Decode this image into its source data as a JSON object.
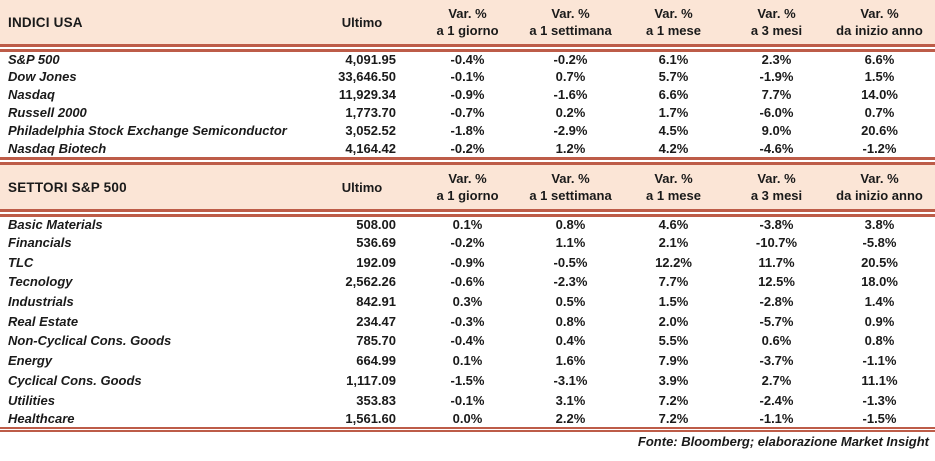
{
  "colors": {
    "header_bg": "#fbe5d6",
    "rule_red": "#bd5c48",
    "text": "#1a1a1a"
  },
  "header_labels": {
    "ultimo": "Ultimo",
    "var": "Var. %",
    "periods": [
      "a 1 giorno",
      "a 1 settimana",
      "a 1 mese",
      "a 3 mesi",
      "da inizio anno"
    ]
  },
  "tables": [
    {
      "title": "INDICI USA",
      "rows": [
        {
          "name": "S&P 500",
          "ultimo": "4,091.95",
          "vars": [
            "-0.4%",
            "-0.2%",
            "6.1%",
            "2.3%",
            "6.6%"
          ]
        },
        {
          "name": "Dow Jones",
          "ultimo": "33,646.50",
          "vars": [
            "-0.1%",
            "0.7%",
            "5.7%",
            "-1.9%",
            "1.5%"
          ]
        },
        {
          "name": "Nasdaq",
          "ultimo": "11,929.34",
          "vars": [
            "-0.9%",
            "-1.6%",
            "6.6%",
            "7.7%",
            "14.0%"
          ]
        },
        {
          "name": "Russell 2000",
          "ultimo": "1,773.70",
          "vars": [
            "-0.7%",
            "0.2%",
            "1.7%",
            "-6.0%",
            "0.7%"
          ]
        },
        {
          "name": "Philadelphia Stock Exchange Semiconductor",
          "ultimo": "3,052.52",
          "vars": [
            "-1.8%",
            "-2.9%",
            "4.5%",
            "9.0%",
            "20.6%"
          ]
        },
        {
          "name": "Nasdaq Biotech",
          "ultimo": "4,164.42",
          "vars": [
            "-0.2%",
            "1.2%",
            "4.2%",
            "-4.6%",
            "-1.2%"
          ]
        }
      ]
    },
    {
      "title": "SETTORI S&P 500",
      "rows": [
        {
          "name": "Basic Materials",
          "ultimo": "508.00",
          "vars": [
            "0.1%",
            "0.8%",
            "4.6%",
            "-3.8%",
            "3.8%"
          ]
        },
        {
          "name": "Financials",
          "ultimo": "536.69",
          "vars": [
            "-0.2%",
            "1.1%",
            "2.1%",
            "-10.7%",
            "-5.8%"
          ]
        },
        {
          "name": "TLC",
          "ultimo": "192.09",
          "vars": [
            "-0.9%",
            "-0.5%",
            "12.2%",
            "11.7%",
            "20.5%"
          ]
        },
        {
          "name": "Tecnology",
          "ultimo": "2,562.26",
          "vars": [
            "-0.6%",
            "-2.3%",
            "7.7%",
            "12.5%",
            "18.0%"
          ]
        },
        {
          "name": "Industrials",
          "ultimo": "842.91",
          "vars": [
            "0.3%",
            "0.5%",
            "1.5%",
            "-2.8%",
            "1.4%"
          ]
        },
        {
          "name": "Real Estate",
          "ultimo": "234.47",
          "vars": [
            "-0.3%",
            "0.8%",
            "2.0%",
            "-5.7%",
            "0.9%"
          ]
        },
        {
          "name": "Non-Cyclical Cons. Goods",
          "ultimo": "785.70",
          "vars": [
            "-0.4%",
            "0.4%",
            "5.5%",
            "0.6%",
            "0.8%"
          ]
        },
        {
          "name": "Energy",
          "ultimo": "664.99",
          "vars": [
            "0.1%",
            "1.6%",
            "7.9%",
            "-3.7%",
            "-1.1%"
          ]
        },
        {
          "name": "Cyclical Cons. Goods",
          "ultimo": "1,117.09",
          "vars": [
            "-1.5%",
            "-3.1%",
            "3.9%",
            "2.7%",
            "11.1%"
          ]
        },
        {
          "name": "Utilities",
          "ultimo": "353.83",
          "vars": [
            "-0.1%",
            "3.1%",
            "7.2%",
            "-2.4%",
            "-1.3%"
          ]
        },
        {
          "name": "Healthcare",
          "ultimo": "1,561.60",
          "vars": [
            "0.0%",
            "2.2%",
            "7.2%",
            "-1.1%",
            "-1.5%"
          ]
        }
      ]
    }
  ],
  "chart_data": [
    {
      "type": "table",
      "title": "INDICI USA",
      "columns": [
        "Ultimo",
        "Var. % a 1 giorno",
        "Var. % a 1 settimana",
        "Var. % a 1 mese",
        "Var. % a 3 mesi",
        "Var. % da inizio anno"
      ],
      "rows": [
        [
          "S&P 500",
          4091.95,
          -0.4,
          -0.2,
          6.1,
          2.3,
          6.6
        ],
        [
          "Dow Jones",
          33646.5,
          -0.1,
          0.7,
          5.7,
          -1.9,
          1.5
        ],
        [
          "Nasdaq",
          11929.34,
          -0.9,
          -1.6,
          6.6,
          7.7,
          14.0
        ],
        [
          "Russell 2000",
          1773.7,
          -0.7,
          0.2,
          1.7,
          -6.0,
          0.7
        ],
        [
          "Philadelphia Stock Exchange Semiconductor",
          3052.52,
          -1.8,
          -2.9,
          4.5,
          9.0,
          20.6
        ],
        [
          "Nasdaq Biotech",
          4164.42,
          -0.2,
          1.2,
          4.2,
          -4.6,
          -1.2
        ]
      ]
    },
    {
      "type": "table",
      "title": "SETTORI S&P 500",
      "columns": [
        "Ultimo",
        "Var. % a 1 giorno",
        "Var. % a 1 settimana",
        "Var. % a 1 mese",
        "Var. % a 3 mesi",
        "Var. % da inizio anno"
      ],
      "rows": [
        [
          "Basic Materials",
          508.0,
          0.1,
          0.8,
          4.6,
          -3.8,
          3.8
        ],
        [
          "Financials",
          536.69,
          -0.2,
          1.1,
          2.1,
          -10.7,
          -5.8
        ],
        [
          "TLC",
          192.09,
          -0.9,
          -0.5,
          12.2,
          11.7,
          20.5
        ],
        [
          "Tecnology",
          2562.26,
          -0.6,
          -2.3,
          7.7,
          12.5,
          18.0
        ],
        [
          "Industrials",
          842.91,
          0.3,
          0.5,
          1.5,
          -2.8,
          1.4
        ],
        [
          "Real Estate",
          234.47,
          -0.3,
          0.8,
          2.0,
          -5.7,
          0.9
        ],
        [
          "Non-Cyclical Cons. Goods",
          785.7,
          -0.4,
          0.4,
          5.5,
          0.6,
          0.8
        ],
        [
          "Energy",
          664.99,
          0.1,
          1.6,
          7.9,
          -3.7,
          -1.1
        ],
        [
          "Cyclical Cons. Goods",
          1117.09,
          -1.5,
          -3.1,
          3.9,
          2.7,
          11.1
        ],
        [
          "Utilities",
          353.83,
          -0.1,
          3.1,
          7.2,
          -2.4,
          -1.3
        ],
        [
          "Healthcare",
          1561.6,
          0.0,
          2.2,
          7.2,
          -1.1,
          -1.5
        ]
      ]
    }
  ],
  "footer": "Fonte: Bloomberg; elaborazione Market Insight"
}
